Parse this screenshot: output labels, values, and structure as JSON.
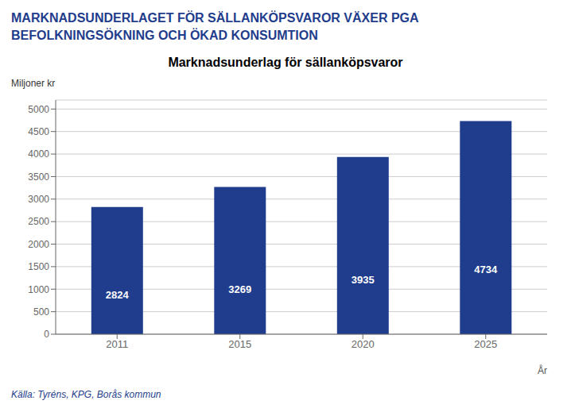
{
  "chart_data": {
    "type": "bar",
    "title": "MARKNADSUNDERLAGET FÖR SÄLLANKÖPSVAROR VÄXER PGA\nBEFOLKNINGSÖKNING OCH ÖKAD KONSUMTION",
    "subtitle": "Marknadsunderlag för sällanköpsvaror",
    "y_label": "Miljoner kr",
    "x_label": "År",
    "annotations": [
      "Källa: Tyréns, KPG, Borås kommun"
    ],
    "categories": [
      "2011",
      "2015",
      "2020",
      "2025"
    ],
    "values": [
      2824,
      3269,
      3935,
      4734
    ],
    "color": "#1F3D8C",
    "ylim": [
      0,
      5200
    ],
    "yticks": [
      0,
      500,
      1000,
      1500,
      2000,
      2500,
      3000,
      3500,
      4000,
      4500,
      5000
    ],
    "grid": true,
    "data_labels": true
  }
}
